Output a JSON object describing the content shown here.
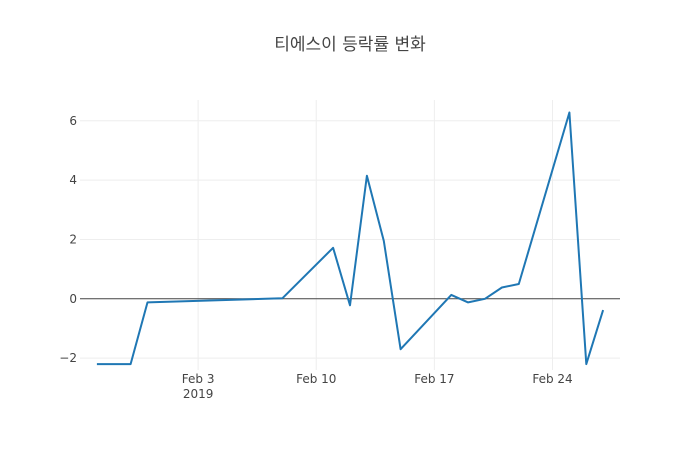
{
  "chart_data": {
    "type": "line",
    "title": "티에스이 등락률 변화",
    "xlabel": "",
    "ylabel": "",
    "x_axis": {
      "type": "date",
      "range": [
        "2019-01-27",
        "2019-02-28"
      ],
      "ticks": [
        {
          "date": "2019-02-03",
          "label": "Feb 3",
          "sublabel": "2019"
        },
        {
          "date": "2019-02-10",
          "label": "Feb 10"
        },
        {
          "date": "2019-02-17",
          "label": "Feb 17"
        },
        {
          "date": "2019-02-24",
          "label": "Feb 24"
        }
      ]
    },
    "y_axis": {
      "range": [
        -2.4,
        6.7
      ],
      "ticks": [
        -2,
        0,
        2,
        4,
        6
      ],
      "tick_labels": [
        "−2",
        "0",
        "2",
        "4",
        "6"
      ]
    },
    "grid": true,
    "zero_line": true,
    "line_color": "#1f77b4",
    "series": [
      {
        "x": [
          "2019-01-28",
          "2019-01-29",
          "2019-01-30",
          "2019-01-31",
          "2019-02-07",
          "2019-02-08",
          "2019-02-11",
          "2019-02-12",
          "2019-02-13",
          "2019-02-14",
          "2019-02-15",
          "2019-02-18",
          "2019-02-19",
          "2019-02-20",
          "2019-02-21",
          "2019-02-22",
          "2019-02-25",
          "2019-02-26",
          "2019-02-27"
        ],
        "y": [
          -2.2,
          -2.2,
          -2.2,
          -0.12,
          0.0,
          0.02,
          1.72,
          -0.22,
          4.15,
          1.95,
          -1.7,
          0.13,
          -0.12,
          0.0,
          0.38,
          0.5,
          6.28,
          -2.2,
          -0.38
        ]
      }
    ]
  }
}
